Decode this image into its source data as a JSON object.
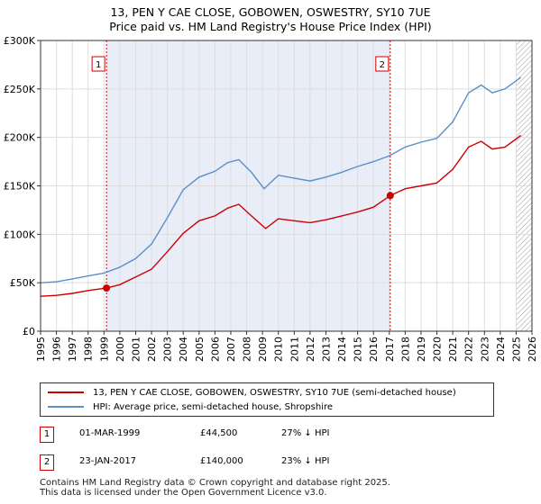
{
  "title_line1": "13, PEN Y CAE CLOSE, GOBOWEN, OSWESTRY, SY10 7UE",
  "title_line2": "Price paid vs. HM Land Registry's House Price Index (HPI)",
  "chart_data": {
    "type": "line",
    "xlim": [
      1995,
      2026
    ],
    "ylim": [
      0,
      300000
    ],
    "x_ticks": [
      "1995",
      "1996",
      "1997",
      "1998",
      "1999",
      "2000",
      "2001",
      "2002",
      "2003",
      "2004",
      "2005",
      "2006",
      "2007",
      "2008",
      "2009",
      "2010",
      "2011",
      "2012",
      "2013",
      "2014",
      "2015",
      "2016",
      "2017",
      "2018",
      "2019",
      "2020",
      "2021",
      "2022",
      "2023",
      "2024",
      "2025",
      "2026"
    ],
    "y_ticks": [
      {
        "value": 0,
        "label": "£0"
      },
      {
        "value": 50000,
        "label": "£50K"
      },
      {
        "value": 100000,
        "label": "£100K"
      },
      {
        "value": 150000,
        "label": "£150K"
      },
      {
        "value": 200000,
        "label": "£200K"
      },
      {
        "value": 250000,
        "label": "£250K"
      },
      {
        "value": 300000,
        "label": "£300K"
      }
    ],
    "shaded_period": [
      1999.16,
      2017.06
    ],
    "future_hatch_from": 2025.0,
    "series": [
      {
        "name": "13, PEN Y CAE CLOSE, GOBOWEN, OSWESTRY, SY10 7UE (semi-detached house)",
        "color": "#cc0000",
        "points": [
          [
            1995,
            36000
          ],
          [
            1996,
            37000
          ],
          [
            1997,
            39000
          ],
          [
            1998,
            42000
          ],
          [
            1999.16,
            44500
          ],
          [
            2000,
            48000
          ],
          [
            2001,
            56000
          ],
          [
            2002,
            64000
          ],
          [
            2003,
            82000
          ],
          [
            2004,
            101000
          ],
          [
            2005,
            114000
          ],
          [
            2006,
            119000
          ],
          [
            2006.8,
            127000
          ],
          [
            2007.5,
            131000
          ],
          [
            2008.3,
            119000
          ],
          [
            2009.2,
            106000
          ],
          [
            2010,
            116000
          ],
          [
            2011,
            114000
          ],
          [
            2012,
            112000
          ],
          [
            2013,
            115000
          ],
          [
            2014,
            119000
          ],
          [
            2015,
            123000
          ],
          [
            2016,
            128000
          ],
          [
            2017.06,
            140000
          ],
          [
            2018,
            147000
          ],
          [
            2019,
            150000
          ],
          [
            2020,
            153000
          ],
          [
            2021,
            167000
          ],
          [
            2022,
            190000
          ],
          [
            2022.8,
            196000
          ],
          [
            2023.5,
            188000
          ],
          [
            2024.3,
            190000
          ],
          [
            2025.3,
            202000
          ]
        ]
      },
      {
        "name": "HPI: Average price, semi-detached house, Shropshire",
        "color": "#5b8fc9",
        "points": [
          [
            1995,
            50000
          ],
          [
            1996,
            51000
          ],
          [
            1997,
            54000
          ],
          [
            1998,
            57000
          ],
          [
            1999,
            60000
          ],
          [
            2000,
            66000
          ],
          [
            2001,
            75000
          ],
          [
            2002,
            90000
          ],
          [
            2003,
            117000
          ],
          [
            2004,
            146000
          ],
          [
            2005,
            159000
          ],
          [
            2006,
            165000
          ],
          [
            2006.8,
            174000
          ],
          [
            2007.5,
            177000
          ],
          [
            2008.3,
            164000
          ],
          [
            2009.1,
            147000
          ],
          [
            2010,
            161000
          ],
          [
            2011,
            158000
          ],
          [
            2012,
            155000
          ],
          [
            2013,
            159000
          ],
          [
            2014,
            164000
          ],
          [
            2015,
            170000
          ],
          [
            2016,
            175000
          ],
          [
            2017,
            181000
          ],
          [
            2018,
            190000
          ],
          [
            2019,
            195000
          ],
          [
            2020,
            199000
          ],
          [
            2021,
            216000
          ],
          [
            2022,
            246000
          ],
          [
            2022.8,
            254000
          ],
          [
            2023.5,
            246000
          ],
          [
            2024.3,
            250000
          ],
          [
            2025.3,
            262000
          ]
        ]
      }
    ],
    "markers": [
      {
        "label": "1",
        "x": 1999.16,
        "y": 44500
      },
      {
        "label": "2",
        "x": 2017.06,
        "y": 140000
      }
    ]
  },
  "legend": {
    "property_label": "13, PEN Y CAE CLOSE, GOBOWEN, OSWESTRY, SY10 7UE (semi-detached house)",
    "hpi_label": "HPI: Average price, semi-detached house, Shropshire"
  },
  "sales": [
    {
      "num": "1",
      "date": "01-MAR-1999",
      "price": "£44,500",
      "hpi": "27% ↓ HPI"
    },
    {
      "num": "2",
      "date": "23-JAN-2017",
      "price": "£140,000",
      "hpi": "23% ↓ HPI"
    }
  ],
  "footer": {
    "line1": "Contains HM Land Registry data © Crown copyright and database right 2025.",
    "line2": "This data is licensed under the Open Government Licence v3.0."
  }
}
